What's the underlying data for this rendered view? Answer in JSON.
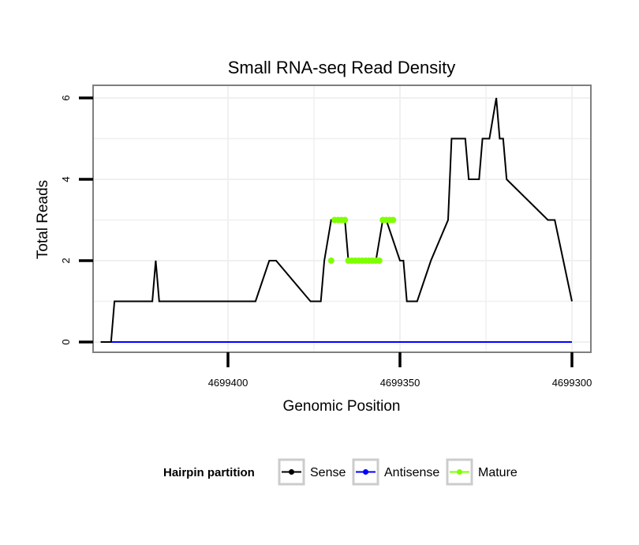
{
  "chart_data": {
    "type": "line",
    "title": "Small RNA-seq Read Density",
    "xlabel": "Genomic Position",
    "ylabel": "Total Reads",
    "xlim": [
      4699437,
      4699295
    ],
    "ylim": [
      -0.3,
      6.3
    ],
    "x_reversed": true,
    "x_ticks": [
      4699400,
      4699350,
      4699300
    ],
    "x_tick_labels": [
      "4699400",
      "4699350",
      "4699300"
    ],
    "y_ticks": [
      0,
      2,
      4,
      6
    ],
    "y_tick_labels": [
      "0",
      "2",
      "4",
      "6"
    ],
    "grid": true,
    "legend": {
      "title": "Hairpin partition",
      "position": "bottom",
      "entries": [
        "Sense",
        "Antisense",
        "Mature"
      ]
    },
    "colors": {
      "Sense": "#000000",
      "Antisense": "#0000ff",
      "Mature": "#7fff00",
      "grid": "#f0f0f0",
      "border": "#7f7f7f"
    },
    "series": [
      {
        "name": "Sense",
        "x": [
          4699437,
          4699434,
          4699433,
          4699422,
          4699421,
          4699420,
          4699409,
          4699407,
          4699400,
          4699392,
          4699388,
          4699386,
          4699376,
          4699374,
          4699373,
          4699372,
          4699370,
          4699366,
          4699365,
          4699359,
          4699357,
          4699355,
          4699354,
          4699350,
          4699349,
          4699348,
          4699347,
          4699345,
          4699341,
          4699336,
          4699335,
          4699331,
          4699330,
          4699327,
          4699326,
          4699324,
          4699322,
          4699321,
          4699320,
          4699319,
          4699307,
          4699305,
          4699300
        ],
        "y": [
          0,
          0,
          1,
          1,
          2,
          1,
          1,
          1,
          1,
          1,
          2,
          2,
          1,
          1,
          1,
          2,
          3,
          3,
          2,
          2,
          2,
          3,
          3,
          2,
          2,
          1,
          1,
          1,
          2,
          3,
          5,
          5,
          4,
          4,
          5,
          5,
          6,
          5,
          5,
          4,
          3,
          3,
          1
        ]
      },
      {
        "name": "Antisense",
        "x": [
          4699437,
          4699300
        ],
        "y": [
          0,
          0
        ]
      },
      {
        "name": "Mature",
        "x": [
          4699370,
          4699369,
          4699368,
          4699367,
          4699366,
          4699365,
          4699364,
          4699363,
          4699362,
          4699361,
          4699360,
          4699359,
          4699358,
          4699357,
          4699356,
          4699355,
          4699354,
          4699353,
          4699352
        ],
        "y": [
          2,
          3,
          3,
          3,
          3,
          2,
          2,
          2,
          2,
          2,
          2,
          2,
          2,
          2,
          2,
          3,
          3,
          3,
          3
        ]
      }
    ]
  }
}
